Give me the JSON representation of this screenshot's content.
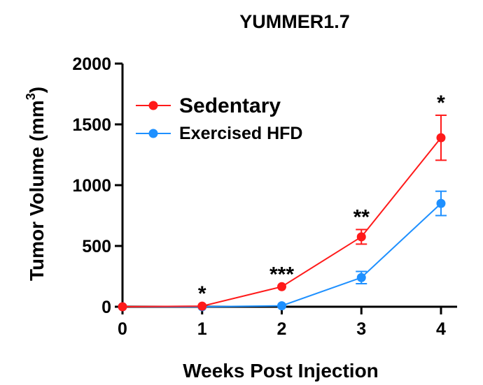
{
  "chart_data": {
    "type": "line",
    "title": "YUMMER1.7",
    "xlabel": "Weeks Post Injection",
    "ylabel": "Tumor Volume (mm",
    "ylabel_sup": "3",
    "ylabel_close": ")",
    "x": [
      0,
      1,
      2,
      3,
      4
    ],
    "xlim": [
      0,
      4
    ],
    "ylim": [
      0,
      2000
    ],
    "xticks": [
      "0",
      "1",
      "2",
      "3",
      "4"
    ],
    "yticks": [
      "0",
      "500",
      "1000",
      "1500",
      "2000"
    ],
    "grid": false,
    "legend_position": "top-left",
    "series": [
      {
        "name": "Sedentary",
        "color": "#ff1a1a",
        "values": [
          0,
          5,
          165,
          575,
          1390
        ],
        "errors": [
          0,
          0,
          0,
          60,
          185
        ]
      },
      {
        "name": "Exercised HFD",
        "color": "#1e90ff",
        "values": [
          0,
          0,
          8,
          240,
          850
        ],
        "errors": [
          0,
          0,
          0,
          50,
          100
        ]
      }
    ],
    "annotations": [
      {
        "x": 1,
        "text": "*"
      },
      {
        "x": 2,
        "text": "***"
      },
      {
        "x": 3,
        "text": "**"
      },
      {
        "x": 4,
        "text": "*"
      }
    ]
  }
}
